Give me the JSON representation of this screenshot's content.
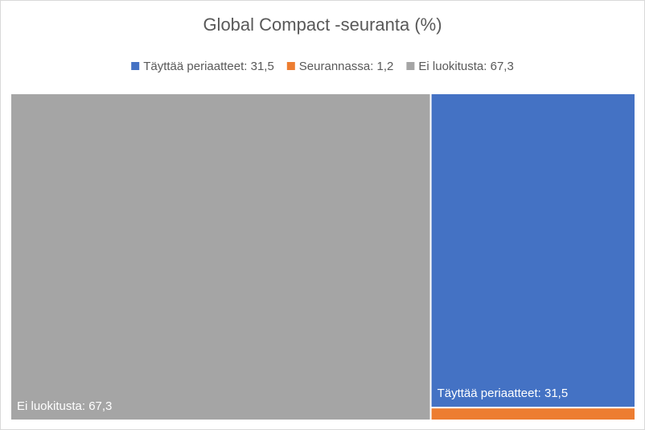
{
  "chart_data": {
    "type": "treemap",
    "title": "Global Compact -seuranta (%)",
    "categories": [
      "Täyttää periaatteet: 31,5",
      "Seurannassa: 1,2",
      "Ei luokitusta: 67,3"
    ],
    "values": [
      31.5,
      1.2,
      67.3
    ],
    "colors": [
      "#4472c4",
      "#ed7d31",
      "#a5a5a5"
    ],
    "legend": "top"
  }
}
